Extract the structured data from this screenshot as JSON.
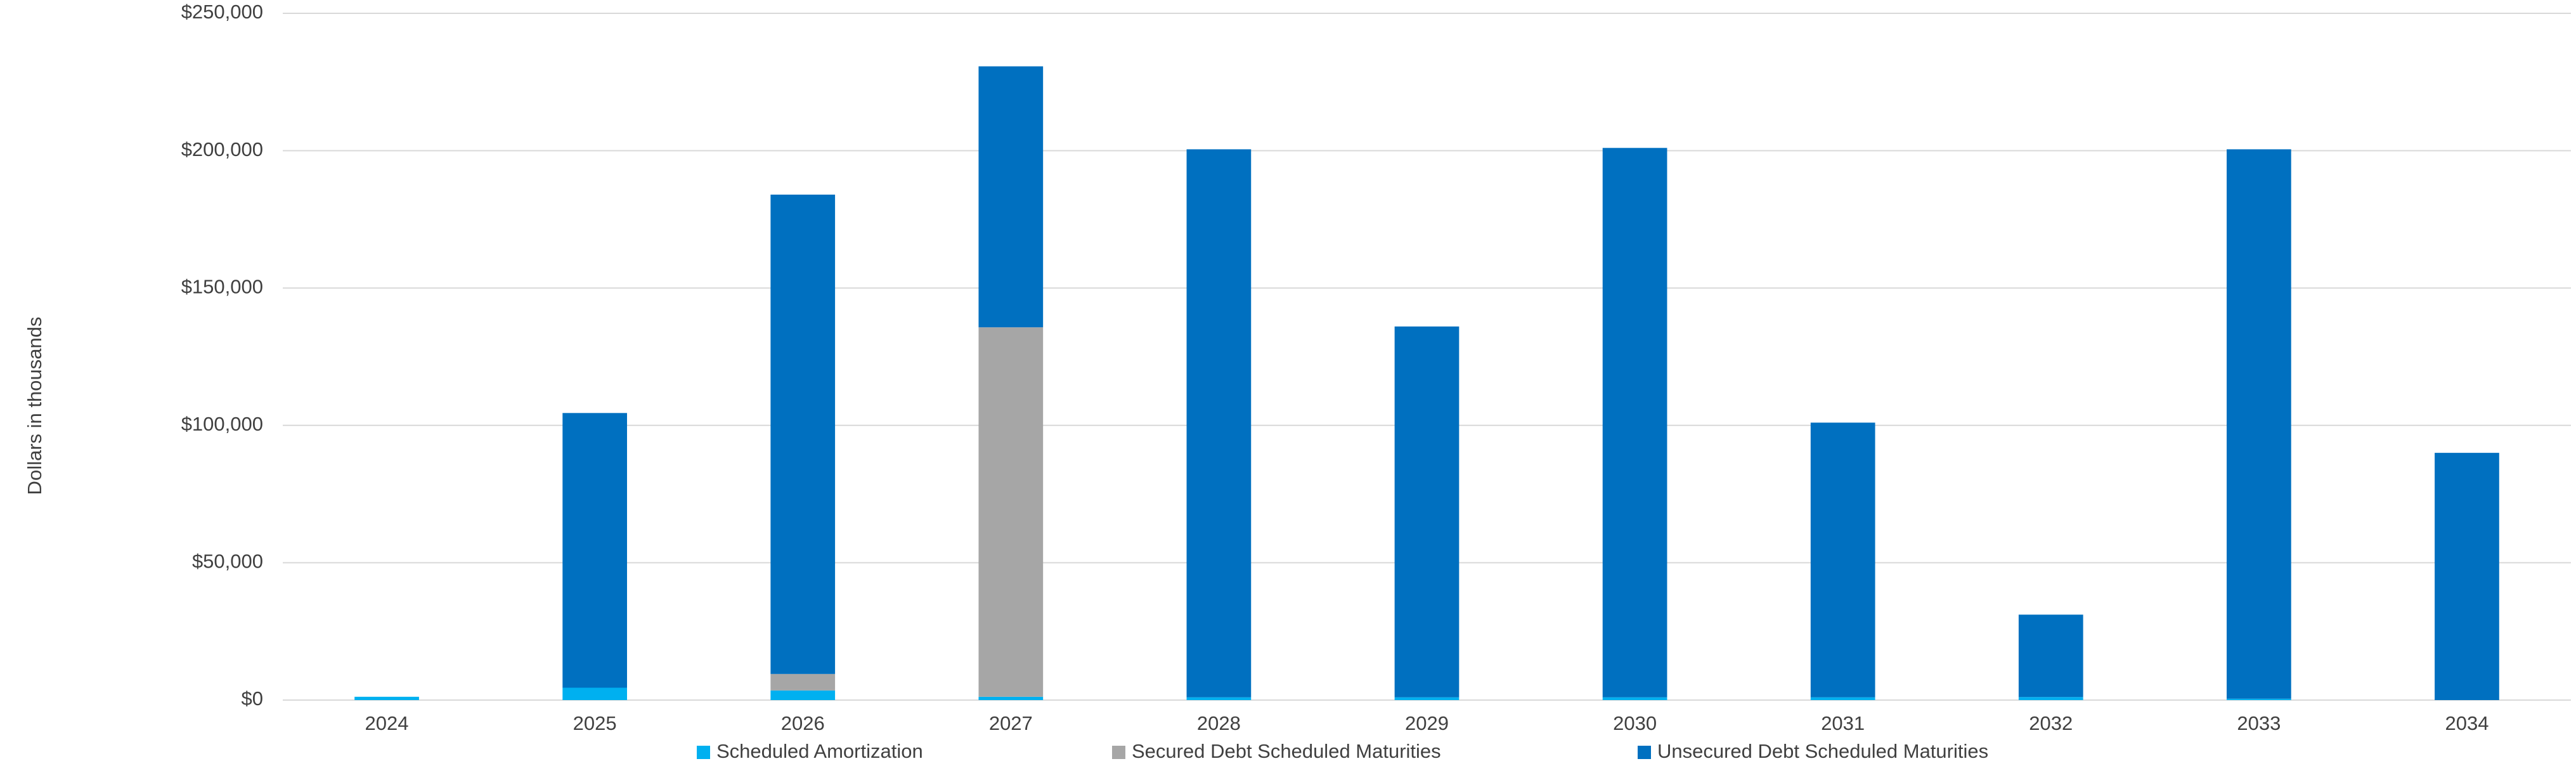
{
  "chart_data": {
    "type": "stacked_bar",
    "y_axis_label": "Dollars in thousands",
    "categories": [
      "2024",
      "2025",
      "2026",
      "2027",
      "2028",
      "2029",
      "2030",
      "2031",
      "2032",
      "2033",
      "2034"
    ],
    "series": [
      {
        "name": "Scheduled Amortization",
        "color": "#00b0f0",
        "values": [
          1200,
          4500,
          3500,
          1200,
          1000,
          1000,
          1000,
          1000,
          1100,
          500,
          0
        ]
      },
      {
        "name": "Secured Debt Scheduled Maturities",
        "color": "#a6a6a6",
        "values": [
          0,
          0,
          6000,
          134500,
          0,
          0,
          0,
          0,
          0,
          0,
          0
        ]
      },
      {
        "name": "Unsecured Debt Scheduled Maturities",
        "color": "#0070c0",
        "values": [
          0,
          100000,
          174500,
          95000,
          199500,
          135000,
          200000,
          100000,
          30000,
          200000,
          90000
        ]
      }
    ],
    "ylim": [
      0,
      250000
    ],
    "yticks": [
      {
        "value": 0,
        "label": "$0"
      },
      {
        "value": 50000,
        "label": "$50,000"
      },
      {
        "value": 100000,
        "label": "$100,000"
      },
      {
        "value": 150000,
        "label": "$150,000"
      },
      {
        "value": 200000,
        "label": "$200,000"
      },
      {
        "value": 250000,
        "label": "$250,000"
      }
    ],
    "grid": true,
    "legend": "bottom"
  }
}
